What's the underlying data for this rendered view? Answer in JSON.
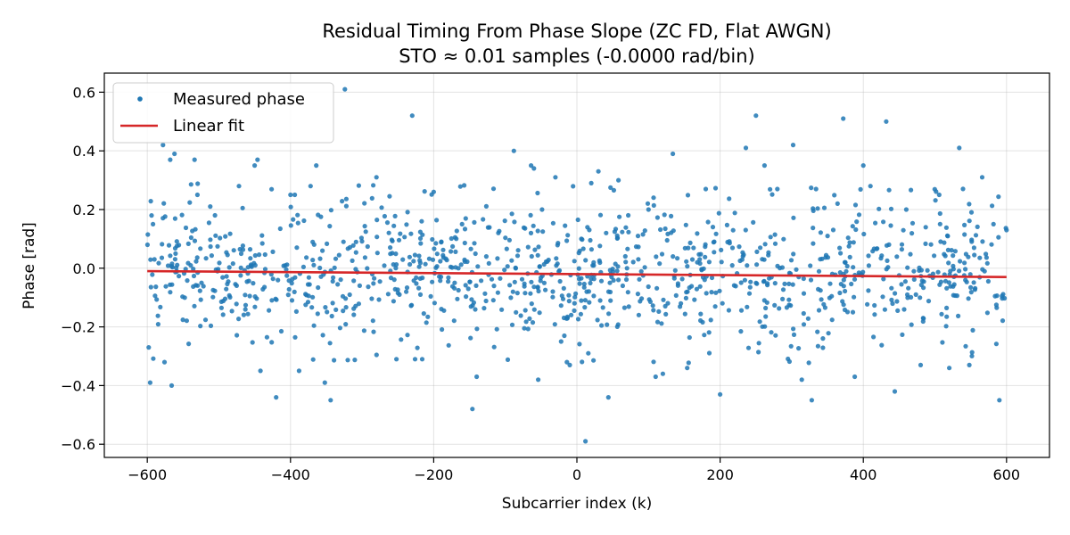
{
  "chart_data": {
    "type": "scatter",
    "title": "Residual Timing From Phase Slope (ZC FD, Flat AWGN)",
    "subtitle": "STO ≈ 0.01 samples (-0.0000 rad/bin)",
    "xlabel": "Subcarrier index (k)",
    "ylabel": "Phase [rad]",
    "xlim": [
      -660,
      660
    ],
    "ylim": [
      -0.645,
      0.665
    ],
    "xticks": [
      -600,
      -400,
      -200,
      0,
      200,
      400,
      600
    ],
    "xtick_labels": [
      "−600",
      "−400",
      "−200",
      "0",
      "200",
      "400",
      "600"
    ],
    "yticks": [
      -0.6,
      -0.4,
      -0.2,
      0.0,
      0.2,
      0.4,
      0.6
    ],
    "ytick_labels": [
      "−0.6",
      "−0.4",
      "−0.2",
      "0.0",
      "0.2",
      "0.4",
      "0.6"
    ],
    "grid": true,
    "legend": "upper-left",
    "series": [
      {
        "name": "Measured phase",
        "kind": "scatter",
        "color": "#1f77b4",
        "x_range": [
          -600,
          600
        ],
        "count": 1200,
        "noise_std": 0.15,
        "points": [
          [
            -598,
            -0.27
          ],
          [
            -596,
            -0.39
          ],
          [
            -594,
            0.18
          ],
          [
            -592,
            0.15
          ],
          [
            -590,
            0.03
          ],
          [
            -578,
            0.42
          ],
          [
            -576,
            -0.32
          ],
          [
            -568,
            0.37
          ],
          [
            -566,
            -0.4
          ],
          [
            -562,
            0.39
          ],
          [
            -534,
            0.37
          ],
          [
            -530,
            0.25
          ],
          [
            -472,
            0.28
          ],
          [
            -450,
            0.35
          ],
          [
            -446,
            0.37
          ],
          [
            -442,
            -0.35
          ],
          [
            -420,
            -0.44
          ],
          [
            -400,
            0.25
          ],
          [
            -394,
            0.25
          ],
          [
            -388,
            -0.35
          ],
          [
            -372,
            0.28
          ],
          [
            -364,
            0.35
          ],
          [
            -352,
            -0.39
          ],
          [
            -344,
            -0.45
          ],
          [
            -324,
            0.61
          ],
          [
            -280,
            0.31
          ],
          [
            -252,
            -0.31
          ],
          [
            -230,
            0.52
          ],
          [
            -226,
            -0.31
          ],
          [
            -216,
            -0.31
          ],
          [
            -200,
            0.26
          ],
          [
            -146,
            -0.48
          ],
          [
            -140,
            -0.37
          ],
          [
            -88,
            0.4
          ],
          [
            -64,
            0.35
          ],
          [
            -60,
            0.34
          ],
          [
            -54,
            -0.38
          ],
          [
            -30,
            0.31
          ],
          [
            -22,
            -0.25
          ],
          [
            -14,
            -0.32
          ],
          [
            -10,
            -0.33
          ],
          [
            12,
            -0.59
          ],
          [
            16,
            -0.29
          ],
          [
            20,
            0.29
          ],
          [
            30,
            0.33
          ],
          [
            44,
            -0.44
          ],
          [
            58,
            0.3
          ],
          [
            100,
            0.2
          ],
          [
            110,
            -0.37
          ],
          [
            120,
            -0.36
          ],
          [
            134,
            0.39
          ],
          [
            154,
            -0.34
          ],
          [
            180,
            0.27
          ],
          [
            200,
            -0.43
          ],
          [
            236,
            0.41
          ],
          [
            250,
            0.52
          ],
          [
            262,
            0.35
          ],
          [
            280,
            0.27
          ],
          [
            302,
            0.42
          ],
          [
            314,
            -0.38
          ],
          [
            328,
            -0.45
          ],
          [
            334,
            0.27
          ],
          [
            364,
            0.22
          ],
          [
            372,
            0.51
          ],
          [
            388,
            -0.37
          ],
          [
            400,
            0.35
          ],
          [
            410,
            0.28
          ],
          [
            432,
            0.5
          ],
          [
            444,
            -0.42
          ],
          [
            460,
            0.2
          ],
          [
            480,
            -0.33
          ],
          [
            506,
            0.25
          ],
          [
            520,
            -0.34
          ],
          [
            534,
            0.41
          ],
          [
            548,
            -0.33
          ],
          [
            566,
            0.31
          ],
          [
            590,
            -0.45
          ],
          [
            600,
            0.13
          ]
        ]
      },
      {
        "name": "Linear fit",
        "kind": "line",
        "color": "#d62728",
        "x": [
          -600,
          600
        ],
        "y": [
          -0.01,
          -0.03
        ]
      }
    ]
  }
}
